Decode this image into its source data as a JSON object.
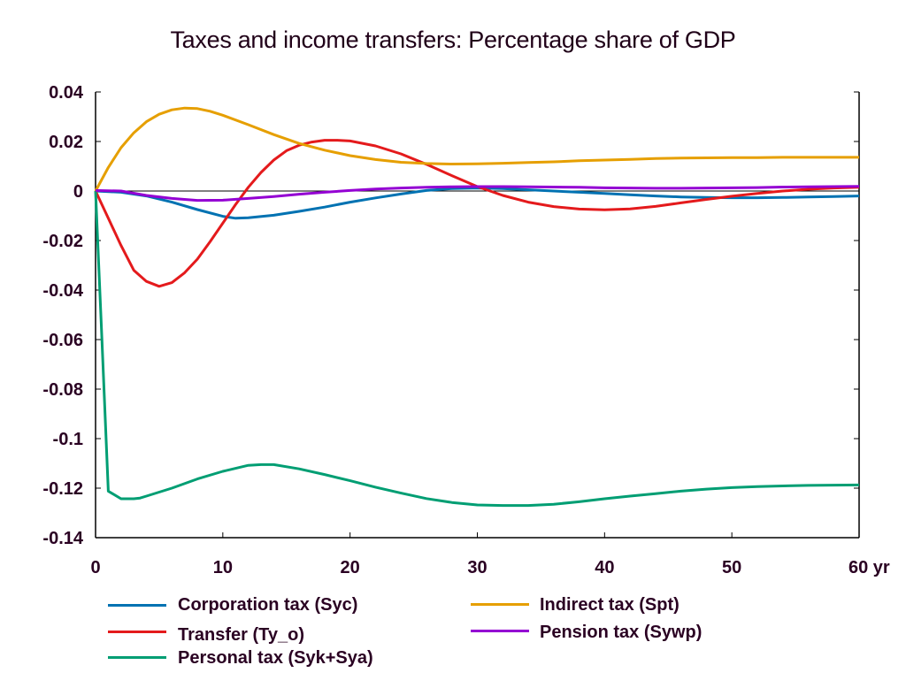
{
  "chart_data": {
    "type": "line",
    "title": "Taxes and income transfers: Percentage share of GDP",
    "xlabel": "",
    "ylabel": "",
    "x_unit_label": "yr",
    "xlim": [
      0,
      60
    ],
    "ylim": [
      -0.14,
      0.04
    ],
    "x_ticks": [
      0,
      10,
      20,
      30,
      40,
      50,
      60
    ],
    "x_tick_labels": [
      "0",
      "10",
      "20",
      "30",
      "40",
      "50",
      "60 yr"
    ],
    "y_ticks": [
      0.04,
      0.02,
      0,
      -0.02,
      -0.04,
      -0.06,
      -0.08,
      -0.1,
      -0.12,
      -0.14
    ],
    "y_tick_labels": [
      "0.04",
      "0.02",
      "0",
      "-0.02",
      "-0.04",
      "-0.06",
      "-0.08",
      "-0.1",
      "-0.12",
      "-0.14"
    ],
    "grid": false,
    "zero_line": true,
    "legend_position": "bottom",
    "series": [
      {
        "name": "Corporation tax (Syc)",
        "color": "#0072b2",
        "x": [
          0,
          2,
          4,
          6,
          8,
          10,
          11,
          12,
          14,
          16,
          18,
          20,
          22,
          24,
          26,
          28,
          30,
          32,
          34,
          36,
          38,
          40,
          42,
          44,
          46,
          48,
          50,
          52,
          54,
          56,
          58,
          60
        ],
        "values": [
          0,
          -0.0005,
          -0.002,
          -0.0045,
          -0.0075,
          -0.0102,
          -0.011,
          -0.0108,
          -0.0098,
          -0.0082,
          -0.0065,
          -0.0045,
          -0.0028,
          -0.0012,
          0.0002,
          0.001,
          0.0012,
          0.001,
          0.0005,
          0.0,
          -0.0005,
          -0.001,
          -0.0015,
          -0.002,
          -0.0024,
          -0.0026,
          -0.0027,
          -0.0027,
          -0.0026,
          -0.0024,
          -0.0022,
          -0.002
        ]
      },
      {
        "name": "Transfer (Ty_o)",
        "color": "#e41a1c",
        "x": [
          0,
          1,
          2,
          3,
          4,
          5,
          6,
          7,
          8,
          9,
          10,
          11,
          12,
          13,
          14,
          15,
          16,
          17,
          18,
          19,
          20,
          22,
          24,
          26,
          28,
          30,
          32,
          34,
          36,
          38,
          40,
          42,
          44,
          46,
          48,
          50,
          52,
          54,
          56,
          58,
          60
        ],
        "values": [
          0,
          -0.011,
          -0.022,
          -0.032,
          -0.0365,
          -0.0385,
          -0.037,
          -0.033,
          -0.0275,
          -0.0205,
          -0.013,
          -0.0055,
          0.0015,
          0.0075,
          0.0125,
          0.0163,
          0.0185,
          0.0198,
          0.0205,
          0.0205,
          0.0202,
          0.0182,
          0.015,
          0.0108,
          0.0062,
          0.0018,
          -0.0018,
          -0.0045,
          -0.0063,
          -0.0073,
          -0.0076,
          -0.0072,
          -0.0062,
          -0.0048,
          -0.0034,
          -0.0021,
          -0.001,
          0.0,
          0.0007,
          0.0012,
          0.0015
        ]
      },
      {
        "name": "Personal tax (Syk+Sya)",
        "color": "#009e73",
        "x": [
          0,
          0.5,
          1,
          2,
          3,
          3.5,
          4,
          6,
          8,
          10,
          12,
          13,
          14,
          16,
          18,
          20,
          22,
          24,
          26,
          28,
          30,
          32,
          34,
          36,
          38,
          40,
          42,
          44,
          46,
          48,
          50,
          52,
          54,
          56,
          58,
          60
        ],
        "values": [
          0,
          -0.06,
          -0.1212,
          -0.1243,
          -0.1243,
          -0.124,
          -0.1232,
          -0.12,
          -0.1163,
          -0.1132,
          -0.1108,
          -0.1105,
          -0.1105,
          -0.1122,
          -0.1145,
          -0.117,
          -0.1196,
          -0.122,
          -0.1242,
          -0.1258,
          -0.1268,
          -0.127,
          -0.127,
          -0.1265,
          -0.1255,
          -0.1243,
          -0.1232,
          -0.1222,
          -0.1212,
          -0.1204,
          -0.1198,
          -0.1194,
          -0.1191,
          -0.1189,
          -0.1188,
          -0.1187
        ]
      },
      {
        "name": "Indirect tax (Spt)",
        "color": "#e69f00",
        "x": [
          0,
          1,
          2,
          3,
          4,
          5,
          6,
          7,
          8,
          9,
          10,
          12,
          14,
          16,
          18,
          20,
          22,
          24,
          26,
          28,
          30,
          32,
          34,
          36,
          38,
          40,
          42,
          44,
          46,
          48,
          50,
          52,
          54,
          56,
          58,
          60
        ],
        "values": [
          0,
          0.0095,
          0.0175,
          0.0235,
          0.028,
          0.031,
          0.0328,
          0.0335,
          0.0333,
          0.0322,
          0.0306,
          0.0268,
          0.0228,
          0.0192,
          0.0165,
          0.0143,
          0.0127,
          0.0116,
          0.0111,
          0.0109,
          0.011,
          0.0112,
          0.0115,
          0.0118,
          0.0122,
          0.0125,
          0.0128,
          0.0131,
          0.0133,
          0.0134,
          0.0135,
          0.0135,
          0.0136,
          0.0136,
          0.0136,
          0.0136
        ]
      },
      {
        "name": "Pension tax (Sywp)",
        "color": "#9400d3",
        "x": [
          0,
          2,
          4,
          6,
          8,
          10,
          12,
          14,
          16,
          18,
          20,
          22,
          24,
          26,
          28,
          30,
          32,
          34,
          36,
          38,
          40,
          42,
          44,
          46,
          48,
          50,
          52,
          54,
          56,
          58,
          60
        ],
        "values": [
          0.0002,
          0.0,
          -0.0018,
          -0.003,
          -0.0038,
          -0.0037,
          -0.003,
          -0.0022,
          -0.0013,
          -0.0005,
          0.0002,
          0.0008,
          0.0012,
          0.0015,
          0.0017,
          0.0018,
          0.0018,
          0.0017,
          0.0016,
          0.0015,
          0.0013,
          0.0012,
          0.0011,
          0.0011,
          0.0012,
          0.0013,
          0.0014,
          0.0016,
          0.0017,
          0.0018,
          0.0019
        ]
      }
    ],
    "legend": {
      "left_column": [
        "Corporation tax (Syc)",
        "Transfer (Ty_o)",
        "Personal tax (Syk+Sya)"
      ],
      "right_column": [
        "Indirect tax (Spt)",
        "Pension tax (Sywp)"
      ]
    }
  }
}
